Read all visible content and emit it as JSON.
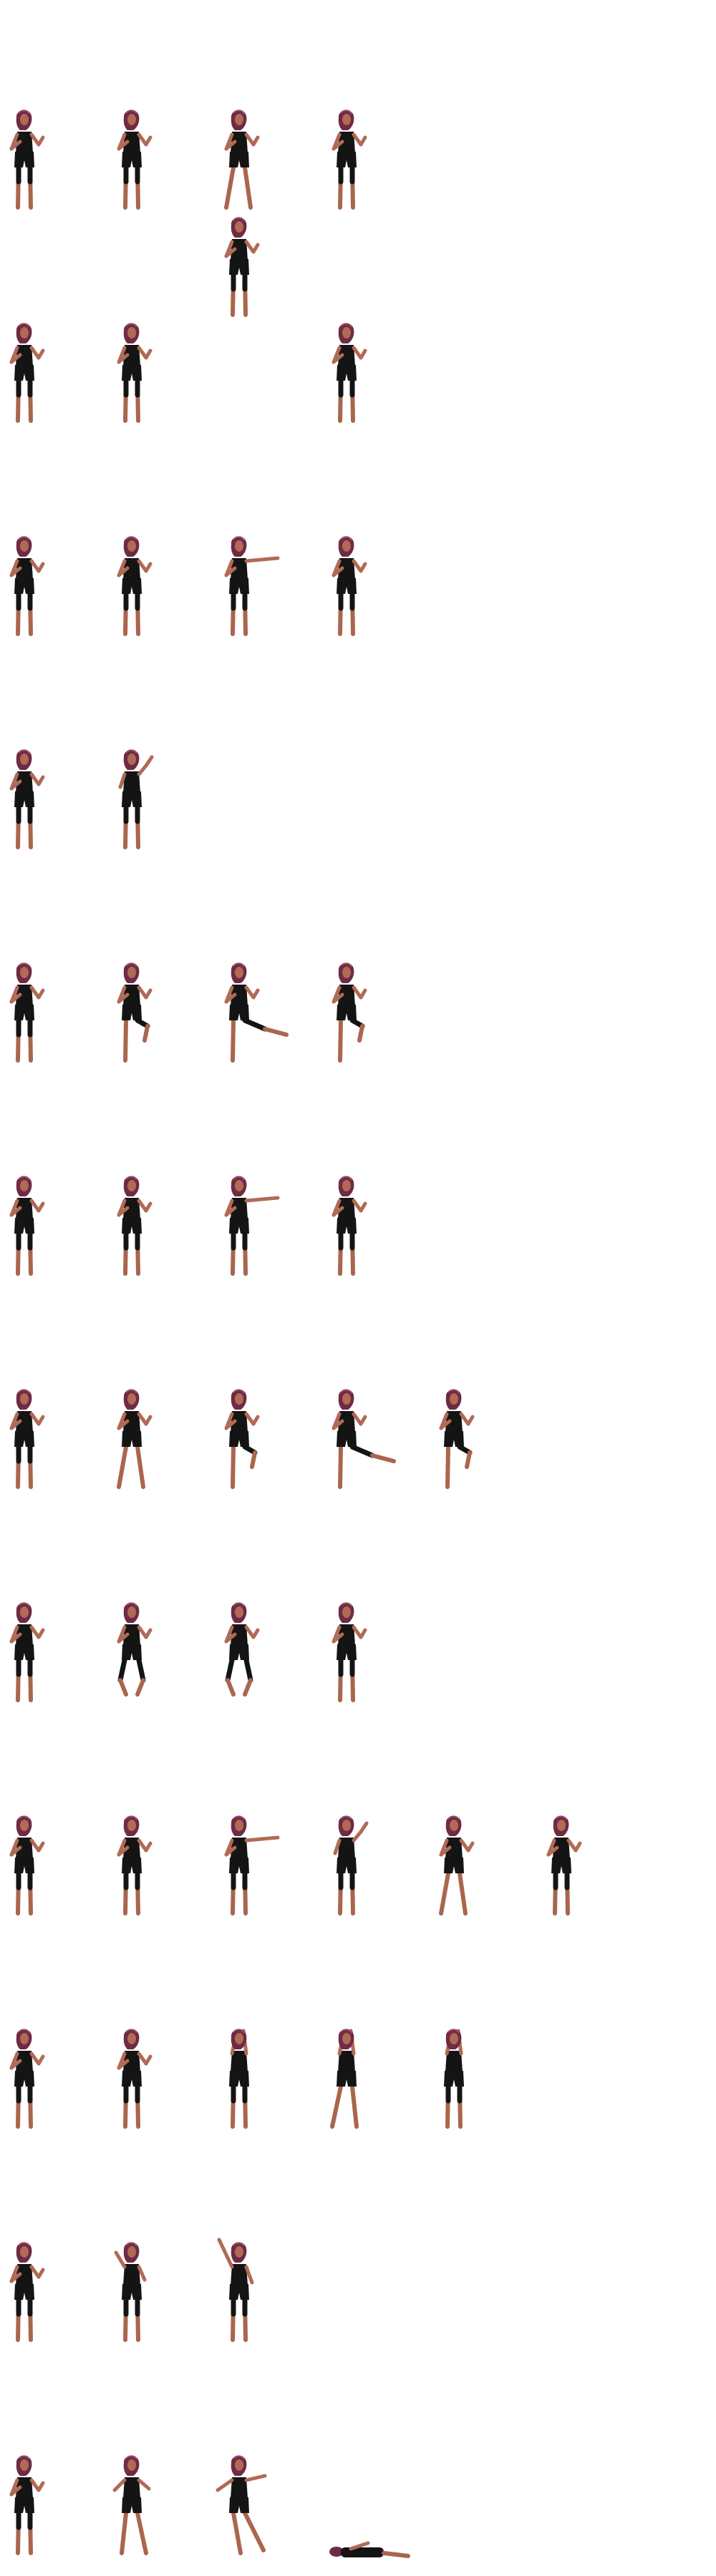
{
  "sprite_sheet": {
    "background": "#ffffff",
    "character": {
      "hair": "#6e2b43",
      "hair_highlight": "#9b4a6e",
      "skin": "#b06a55",
      "skin_shadow": "#7a3f35",
      "outfit": "#141414",
      "lower_leg": "#a9664c"
    },
    "rows": [
      {
        "action": "idle",
        "frames": [
          "stand",
          "stand",
          "step",
          "stand",
          "stand_alt"
        ]
      },
      {
        "action": "hurt",
        "frames": [
          "stand",
          "guard",
          "empty",
          "guard"
        ]
      },
      {
        "action": "punch",
        "frames": [
          "stand",
          "guard",
          "jab",
          "guard"
        ]
      },
      {
        "action": "block",
        "frames": [
          "stand",
          "raise"
        ]
      },
      {
        "action": "kick",
        "frames": [
          "stand",
          "knee",
          "front_kick",
          "knee"
        ]
      },
      {
        "action": "combo",
        "frames": [
          "stand",
          "guard",
          "reach",
          "guard"
        ]
      },
      {
        "action": "high_kick",
        "frames": [
          "stand",
          "step",
          "knee",
          "high_kick",
          "knee"
        ]
      },
      {
        "action": "crouch",
        "frames": [
          "stand",
          "squat_prep",
          "crouch",
          "guard"
        ]
      },
      {
        "action": "strike_chain",
        "frames": [
          "stand",
          "guard",
          "reach",
          "raise",
          "lunge",
          "guard"
        ]
      },
      {
        "action": "overhead",
        "frames": [
          "stand",
          "guard",
          "overhead",
          "overhead_lunge",
          "overhead"
        ]
      },
      {
        "action": "victory",
        "frames": [
          "stand",
          "hands_up",
          "arm_high"
        ]
      },
      {
        "action": "defeat",
        "frames": [
          "stand",
          "stagger",
          "fall",
          "lying"
        ]
      }
    ]
  }
}
